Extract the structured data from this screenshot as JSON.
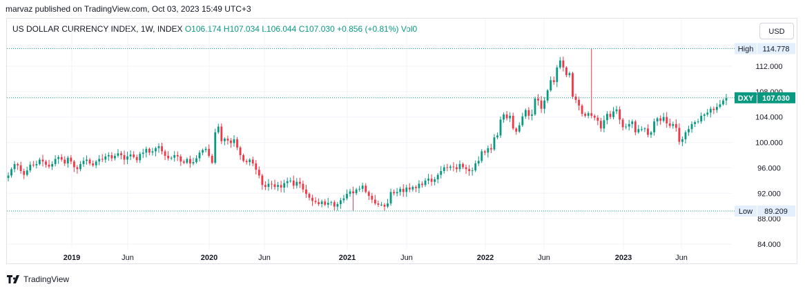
{
  "header": {
    "published": "marvaz published on TradingView.com, Oct 03, 2023 15:49 UTC+3"
  },
  "legend": {
    "symbol": "US DOLLAR CURRENCY INDEX, 1W, INDEX",
    "open": "O106.174",
    "high": "H107.034",
    "low": "L106.044",
    "close": "C107.030",
    "change": "+0.856 (+0.81%)",
    "volume": "Vol0"
  },
  "currency_button": "USD",
  "footer": {
    "brand": "TradingView"
  },
  "colors": {
    "up": "#089981",
    "down": "#f23645",
    "grid": "#f0f3fa",
    "dotted": "#089981"
  },
  "chart_data": {
    "type": "candlestick",
    "ylim": [
      82.5,
      116
    ],
    "y_ticks": [
      "84.000",
      "88.000",
      "92.000",
      "96.000",
      "100.000",
      "104.000",
      "108.000",
      "112.000"
    ],
    "x_ticks": [
      "2019",
      "Jun",
      "2020",
      "Jun",
      "2021",
      "Jun",
      "2022",
      "Jun",
      "2023",
      "Jun"
    ],
    "markers": [
      {
        "label": "High",
        "value": "114.778"
      },
      {
        "label": "DXY",
        "value": "107.030"
      },
      {
        "label": "Low",
        "value": "89.209"
      }
    ],
    "closes": [
      94.8,
      95.8,
      96.6,
      96.4,
      95.5,
      94.9,
      95.6,
      96.5,
      96.4,
      96.6,
      97.3,
      97.0,
      96.5,
      96.2,
      96.6,
      97.4,
      97.7,
      97.3,
      96.7,
      97.6,
      97.0,
      96.1,
      95.8,
      96.6,
      97.1,
      97.3,
      96.7,
      96.4,
      97.0,
      97.4,
      97.3,
      97.8,
      98.0,
      97.5,
      97.9,
      98.3,
      98.0,
      97.3,
      97.8,
      98.1,
      97.7,
      97.2,
      98.2,
      98.4,
      99.0,
      98.4,
      98.6,
      99.1,
      99.4,
      98.6,
      97.9,
      97.5,
      97.6,
      98.0,
      97.8,
      97.0,
      96.8,
      97.4,
      96.7,
      96.9,
      97.5,
      98.4,
      98.8,
      99.0,
      97.9,
      96.8,
      101.6,
      102.5,
      100.2,
      100.6,
      100.3,
      99.9,
      100.5,
      99.2,
      98.0,
      97.1,
      96.9,
      97.3,
      96.7,
      95.7,
      94.8,
      93.3,
      93.0,
      93.5,
      93.4,
      93.0,
      93.3,
      92.9,
      93.6,
      93.9,
      94.0,
      93.2,
      93.8,
      93.5,
      92.6,
      91.9,
      91.3,
      90.8,
      90.6,
      90.3,
      90.7,
      90.2,
      90.5,
      90.6,
      89.9,
      90.3,
      90.9,
      91.2,
      91.9,
      92.3,
      92.0,
      92.6,
      92.7,
      93.2,
      92.2,
      91.6,
      91.0,
      90.4,
      90.2,
      90.2,
      89.9,
      90.4,
      92.2,
      92.0,
      92.2,
      92.7,
      92.2,
      92.9,
      92.6,
      93.0,
      92.8,
      93.5,
      93.3,
      94.0,
      94.3,
      93.8,
      94.2,
      94.9,
      95.5,
      96.1,
      96.0,
      96.2,
      96.1,
      95.8,
      96.6,
      96.1,
      95.8,
      95.5,
      95.6,
      96.7,
      97.1,
      98.6,
      98.4,
      99.1,
      98.9,
      100.8,
      101.1,
      103.6,
      104.4,
      103.8,
      104.2,
      102.2,
      101.7,
      102.7,
      104.1,
      105.1,
      104.2,
      104.4,
      106.9,
      106.6,
      105.3,
      106.6,
      108.2,
      109.8,
      109.5,
      111.8,
      112.9,
      111.8,
      110.6,
      110.9,
      107.2,
      106.7,
      105.8,
      104.5,
      104.2,
      104.6,
      104.2,
      103.9,
      103.4,
      102.2,
      103.5,
      104.5,
      104.0,
      104.9,
      105.2,
      103.6,
      102.4,
      102.5,
      102.9,
      103.3,
      101.6,
      102.1,
      102.1,
      102.2,
      101.2,
      101.6,
      103.3,
      103.8,
      103.4,
      104.0,
      103.0,
      102.6,
      102.9,
      102.3,
      100.1,
      100.5,
      101.6,
      102.1,
      102.9,
      103.2,
      103.3,
      104.2,
      104.4,
      104.7,
      105.3,
      105.1,
      105.6,
      106.0,
      106.6,
      107.0
    ]
  }
}
